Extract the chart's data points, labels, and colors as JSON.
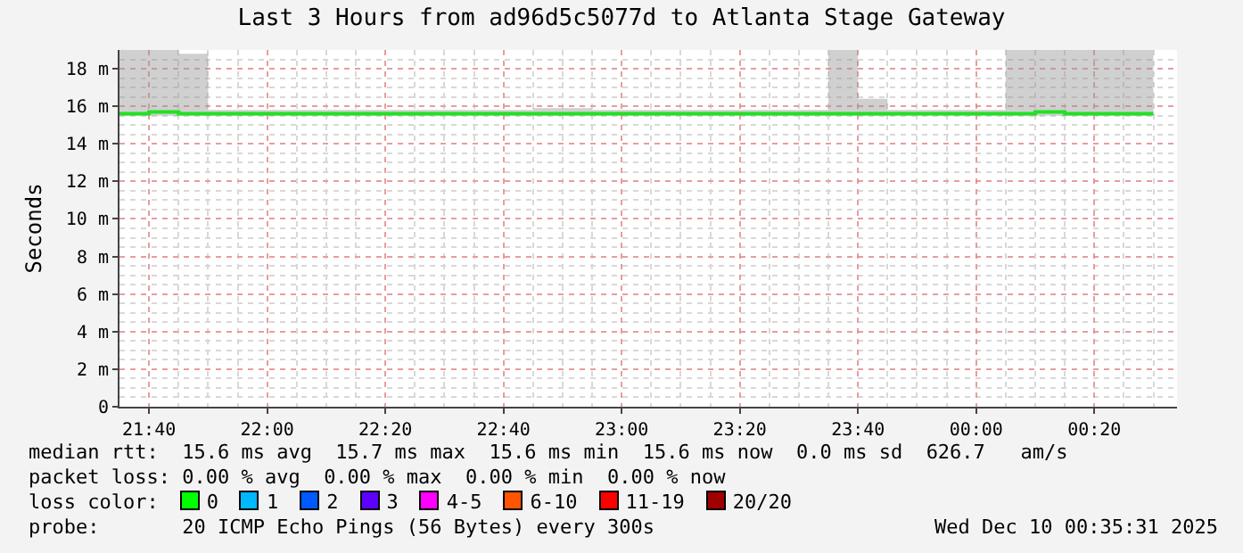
{
  "chart_data": {
    "type": "step",
    "title": "Last 3 Hours from ad96d5c5077d to Atlanta Stage Gateway",
    "ylabel": "Seconds",
    "x": [
      "2025-12-09T21:35",
      "2025-12-09T21:40",
      "2025-12-09T21:45",
      "2025-12-09T21:50",
      "2025-12-09T21:55",
      "2025-12-09T22:00",
      "2025-12-09T22:05",
      "2025-12-09T22:10",
      "2025-12-09T22:15",
      "2025-12-09T22:20",
      "2025-12-09T22:25",
      "2025-12-09T22:30",
      "2025-12-09T22:35",
      "2025-12-09T22:40",
      "2025-12-09T22:45",
      "2025-12-09T22:50",
      "2025-12-09T22:55",
      "2025-12-09T23:00",
      "2025-12-09T23:05",
      "2025-12-09T23:10",
      "2025-12-09T23:15",
      "2025-12-09T23:20",
      "2025-12-09T23:25",
      "2025-12-09T23:30",
      "2025-12-09T23:35",
      "2025-12-09T23:40",
      "2025-12-09T23:45",
      "2025-12-09T23:50",
      "2025-12-09T23:55",
      "2025-12-10T00:00",
      "2025-12-10T00:05",
      "2025-12-10T00:10",
      "2025-12-10T00:15",
      "2025-12-10T00:20",
      "2025-12-10T00:25",
      "2025-12-10T00:30"
    ],
    "series": [
      {
        "color": "#22e022",
        "values": [
          15.6,
          15.7,
          15.6,
          15.6,
          15.6,
          15.6,
          15.6,
          15.6,
          15.6,
          15.6,
          15.6,
          15.6,
          15.6,
          15.6,
          15.6,
          15.6,
          15.6,
          15.6,
          15.6,
          15.6,
          15.6,
          15.6,
          15.6,
          15.6,
          15.6,
          15.6,
          15.6,
          15.6,
          15.6,
          15.6,
          15.6,
          15.7,
          15.6,
          15.6,
          15.6,
          15.6
        ],
        "lower": [
          15.5,
          15.5,
          15.5,
          15.5,
          15.5,
          15.5,
          15.5,
          15.5,
          15.5,
          15.5,
          15.5,
          15.5,
          15.5,
          15.5,
          15.5,
          15.5,
          15.5,
          15.5,
          15.5,
          15.5,
          15.5,
          15.5,
          15.5,
          15.5,
          15.5,
          15.5,
          15.5,
          15.5,
          15.5,
          15.5,
          15.5,
          15.5,
          15.5,
          15.5,
          15.5,
          15.5
        ],
        "upper": [
          19,
          19,
          18.8,
          15.8,
          15.8,
          15.8,
          15.8,
          15.8,
          15.8,
          15.8,
          15.8,
          15.8,
          15.8,
          15.8,
          15.9,
          15.9,
          15.8,
          15.8,
          15.8,
          15.8,
          15.8,
          15.8,
          15.8,
          15.8,
          19,
          16.4,
          15.8,
          15.8,
          15.8,
          15.8,
          19,
          19,
          19,
          19,
          19,
          15.6
        ]
      }
    ],
    "xlim": [
      "2025-12-09T21:35",
      "2025-12-10T00:34"
    ],
    "xticks": [
      {
        "value": "2025-12-09T21:40",
        "label": "21:40"
      },
      {
        "value": "2025-12-09T22:00",
        "label": "22:00"
      },
      {
        "value": "2025-12-09T22:20",
        "label": "22:20"
      },
      {
        "value": "2025-12-09T22:40",
        "label": "22:40"
      },
      {
        "value": "2025-12-09T23:00",
        "label": "23:00"
      },
      {
        "value": "2025-12-09T23:20",
        "label": "23:20"
      },
      {
        "value": "2025-12-09T23:40",
        "label": "23:40"
      },
      {
        "value": "2025-12-10T00:00",
        "label": "00:00"
      },
      {
        "value": "2025-12-10T00:20",
        "label": "00:20"
      }
    ],
    "ylim": [
      0,
      19
    ],
    "yticks": [
      0,
      {
        "value": 2,
        "label": "2 m"
      },
      {
        "value": 4,
        "label": "4 m"
      },
      {
        "value": 6,
        "label": "6 m"
      },
      {
        "value": 8,
        "label": "8 m"
      },
      {
        "value": 10,
        "label": "10 m"
      },
      {
        "value": 12,
        "label": "12 m"
      },
      {
        "value": 14,
        "label": "14 m"
      },
      {
        "value": 16,
        "label": "16 m"
      },
      {
        "value": 18,
        "label": "18 m"
      }
    ],
    "grid": true,
    "annotations": [
      "median rtt:  15.6 ms avg  15.7 ms max  15.6 ms min  15.6 ms now  0.0 ms sd  626.7   am/s",
      "packet loss: 0.00 % avg  0.00 % max  0.00 % min  0.00 % now",
      "loss color:",
      "0",
      "1",
      "2",
      "3",
      "4-5",
      "6-10",
      "11-19",
      "20/20",
      "probe:       20 ICMP Echo Pings (56 Bytes) every 300s",
      "Wed Dec 10 00:35:31 2025"
    ]
  }
}
